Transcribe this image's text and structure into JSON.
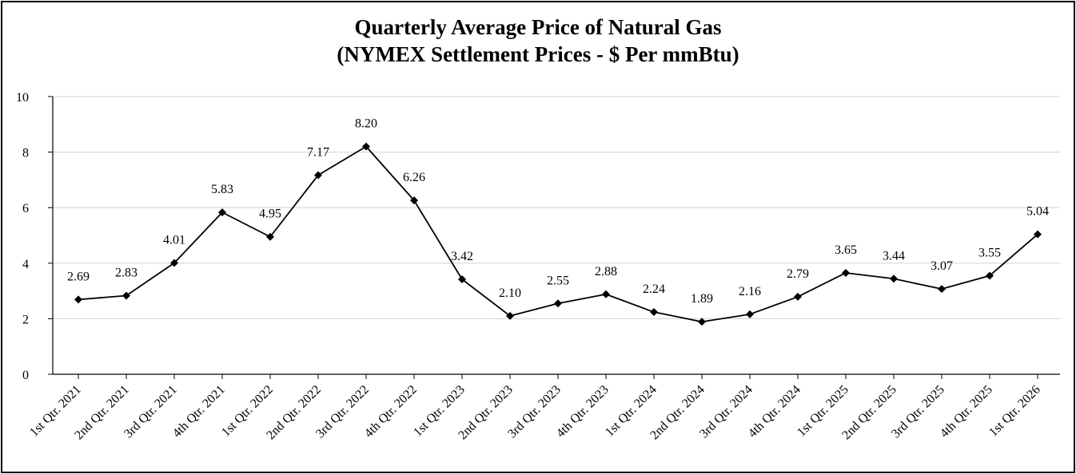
{
  "chart_data": {
    "type": "line",
    "title_line1": "Quarterly Average Price of Natural Gas",
    "title_line2": "(NYMEX Settlement Prices - $ Per mmBtu)",
    "xlabel": "",
    "ylabel": "",
    "ylim": [
      0,
      10
    ],
    "yticks": [
      0,
      2,
      4,
      6,
      8,
      10
    ],
    "grid": true,
    "legend": "none",
    "line_color": "#000000",
    "gridline_color": "#d9d9d9",
    "categories": [
      "1st Qtr. 2021",
      "2nd Qtr. 2021",
      "3rd Qtr. 2021",
      "4th Qtr. 2021",
      "1st Qtr. 2022",
      "2nd Qtr. 2022",
      "3rd Qtr. 2022",
      "4th Qtr. 2022",
      "1st Qtr. 2023",
      "2nd Qtr. 2023",
      "3rd Qtr. 2023",
      "4th Qtr. 2023",
      "1st Qtr. 2024",
      "2nd Qtr. 2024",
      "3rd Qtr. 2024",
      "4th Qtr. 2024",
      "1st Qtr. 2025",
      "2nd Qtr. 2025",
      "3rd Qtr. 2025",
      "4th Qtr. 2025",
      "1st Qtr. 2026"
    ],
    "values": [
      2.69,
      2.83,
      4.01,
      5.83,
      4.95,
      7.17,
      8.2,
      6.26,
      3.42,
      2.1,
      2.55,
      2.88,
      2.24,
      1.89,
      2.16,
      2.79,
      3.65,
      3.44,
      3.07,
      3.55,
      5.04
    ],
    "data_labels": [
      "2.69",
      "2.83",
      "4.01",
      "5.83",
      "4.95",
      "7.17",
      "8.20",
      "6.26",
      "3.42",
      "2.10",
      "2.55",
      "2.88",
      "2.24",
      "1.89",
      "2.16",
      "2.79",
      "3.65",
      "3.44",
      "3.07",
      "3.55",
      "5.04"
    ]
  }
}
